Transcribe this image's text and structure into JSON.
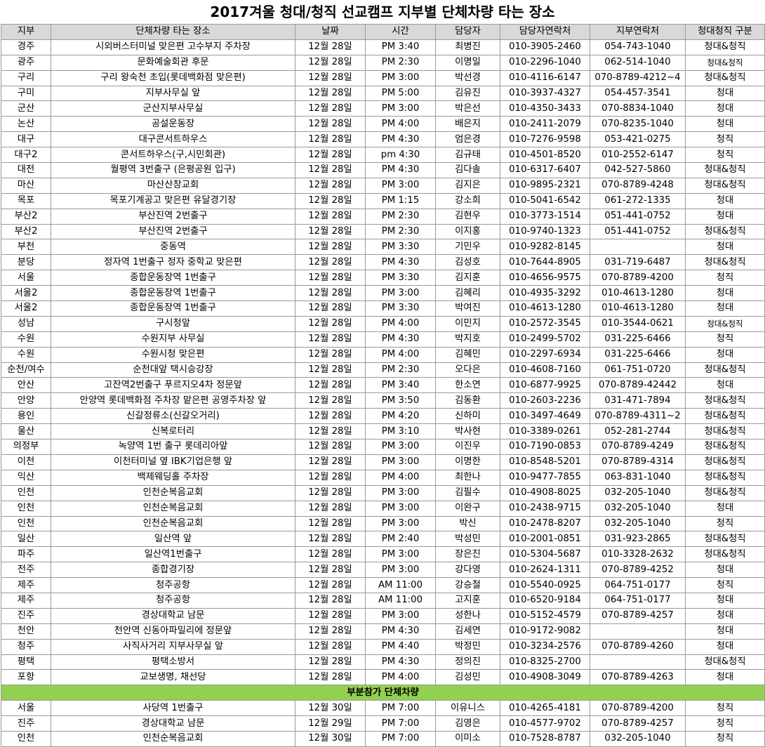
{
  "title": "2017겨울 청대/청직 선교캠프 지부별 단체차량 타는 장소",
  "headers": [
    "지부",
    "단체차량 타는 장소",
    "날짜",
    "시간",
    "담당자",
    "담당자연락처",
    "지부연락처",
    "청대청직 구분"
  ],
  "rows": [
    [
      "경주",
      "시외버스터미널 맞은편 고수부지 주차장",
      "12월 28일",
      "PM 3:40",
      "최병진",
      "010-3905-2460",
      "054-743-1040",
      "청대&청직"
    ],
    [
      "광주",
      "문화예술회관 후문",
      "12월 28일",
      "PM 2:30",
      "이명일",
      "010-2296-1040",
      "062-514-1040",
      "청대&청직"
    ],
    [
      "구리",
      "구리 왕숙천 초입(롯데백화점 맞은편)",
      "12월 28일",
      "PM 3:00",
      "박선경",
      "010-4116-6147",
      "070-8789-4212~4",
      "청대&청직"
    ],
    [
      "구미",
      "지부사무실 앞",
      "12월 28일",
      "PM 5:00",
      "김유진",
      "010-3937-4327",
      "054-457-3541",
      "청대"
    ],
    [
      "군산",
      "군산지부사무실",
      "12월 28일",
      "PM 3:00",
      "박은선",
      "010-4350-3433",
      "070-8834-1040",
      "청대"
    ],
    [
      "논산",
      "공설운동장",
      "12월 28일",
      "PM 4:00",
      "배은지",
      "010-2411-2079",
      "070-8235-1040",
      "청대"
    ],
    [
      "대구",
      "대구콘서트하우스",
      "12월 28일",
      "PM 4:30",
      "엄은경",
      "010-7276-9598",
      "053-421-0275",
      "청직"
    ],
    [
      "대구2",
      "콘서트하우스(구,시민회관)",
      "12월 28일",
      "pm 4:30",
      "김규태",
      "010-4501-8520",
      "010-2552-6147",
      "청직"
    ],
    [
      "대전",
      "월평역 3번출구 (은평공원 입구)",
      "12월 28일",
      "PM 4:30",
      "김다솔",
      "010-6317-6407",
      "042-527-5860",
      "청대&청직"
    ],
    [
      "마산",
      "마산산창교회",
      "12월 28일",
      "PM 3:00",
      "김지은",
      "010-9895-2321",
      "070-8789-4248",
      "청대&청직"
    ],
    [
      "목포",
      "목포기계공고 맞은편 유달경기장",
      "12월 28일",
      "PM 1:15",
      "강소희",
      "010-5041-6542",
      "061-272-1335",
      "청대"
    ],
    [
      "부산2",
      "부산진역 2번출구",
      "12월 28일",
      "PM 2:30",
      "김현우",
      "010-3773-1514",
      "051-441-0752",
      "청대"
    ],
    [
      "부산2",
      "부산진역 2번출구",
      "12월 28일",
      "PM 2:30",
      "이지홍",
      "010-9740-1323",
      "051-441-0752",
      "청대&청직"
    ],
    [
      "부천",
      "중동역",
      "12월 28일",
      "PM 3:30",
      "기민우",
      "010-9282-8145",
      "",
      "청대"
    ],
    [
      "분당",
      "정자역 1번출구 정자 중학교 맞은편",
      "12월 28일",
      "PM 4:30",
      "김성호",
      "010-7644-8905",
      "031-719-6487",
      "청대&청직"
    ],
    [
      "서울",
      "종합운동장역 1번출구",
      "12월 28일",
      "PM 3:30",
      "김지훈",
      "010-4656-9575",
      "070-8789-4200",
      "청직"
    ],
    [
      "서울2",
      "종합운동장역 1번출구",
      "12월 28일",
      "PM 3:00",
      "김혜리",
      "010-4935-3292",
      "010-4613-1280",
      "청대"
    ],
    [
      "서울2",
      "종합운동장역 1번출구",
      "12월 28일",
      "PM 3:30",
      "박여진",
      "010-4613-1280",
      "010-4613-1280",
      "청대"
    ],
    [
      "성남",
      "구시청앞",
      "12월 28일",
      "PM 4:00",
      "이민지",
      "010-2572-3545",
      "010-3544-0621",
      "청대&청직"
    ],
    [
      "수원",
      "수원지부 사무실",
      "12월 28일",
      "PM 4:30",
      "박지호",
      "010-2499-5702",
      "031-225-6466",
      "청직"
    ],
    [
      "수원",
      "수원시청 맞은편",
      "12월 28일",
      "PM 4:00",
      "김혜민",
      "010-2297-6934",
      "031-225-6466",
      "청대"
    ],
    [
      "순천/여수",
      "순천대앞 택시승강장",
      "12월 28일",
      "PM 2:30",
      "오다은",
      "010-4608-7160",
      "061-751-0720",
      "청대&청직"
    ],
    [
      "안산",
      "고잔역2번출구 푸르지오4차 정문앞",
      "12월 28일",
      "PM 3:40",
      "한소연",
      "010-6877-9925",
      "070-8789-42442",
      "청대"
    ],
    [
      "안양",
      "안양역 롯데백화점 주차장 맡은편 공영주차장 앞",
      "12월 28일",
      "PM 3:50",
      "김동환",
      "010-2603-2236",
      "031-471-7894",
      "청대&청직"
    ],
    [
      "용인",
      "신갈정류소(신갈오거리)",
      "12월 28일",
      "PM 4:20",
      "신하미",
      "010-3497-4649",
      "070-8789-4311~2",
      "청대&청직"
    ],
    [
      "울산",
      "신복로터리",
      "12월 28일",
      "PM 3:10",
      "박사현",
      "010-3389-0261",
      "052-281-2744",
      "청대&청직"
    ],
    [
      "의정부",
      "녹양역 1번 출구 롯데리아앞",
      "12월 28일",
      "PM 3:00",
      "이진우",
      "010-7190-0853",
      "070-8789-4249",
      "청대&청직"
    ],
    [
      "이천",
      "이천터미널 옆 IBK기업은행 앞",
      "12월 28일",
      "PM 3:00",
      "이명한",
      "010-8548-5201",
      "070-8789-4314",
      "청대&청직"
    ],
    [
      "익산",
      "백제웨딩홀 주차장",
      "12월 28일",
      "PM 4:00",
      "최한나",
      "010-9477-7855",
      "063-831-1040",
      "청대&청직"
    ],
    [
      "인천",
      "인천순복음교회",
      "12월 28일",
      "PM 3:00",
      "김필수",
      "010-4908-8025",
      "032-205-1040",
      "청대&청직"
    ],
    [
      "인천",
      "인천순복음교회",
      "12월 28일",
      "PM 3:00",
      "이완구",
      "010-2438-9715",
      "032-205-1040",
      "청대"
    ],
    [
      "인천",
      "인천순복음교회",
      "12월 28일",
      "PM 3:00",
      "박신",
      "010-2478-8207",
      "032-205-1040",
      "청직"
    ],
    [
      "일산",
      "일산역 앞",
      "12월 28일",
      "PM 2:40",
      "박성민",
      "010-2001-0851",
      "031-923-2865",
      "청대&청직"
    ],
    [
      "파주",
      "일산역1번출구",
      "12월 28일",
      "PM 3:00",
      "장은진",
      "010-5304-5687",
      "010-3328-2632",
      "청대&청직"
    ],
    [
      "전주",
      "종합경기장",
      "12월 28일",
      "PM 3:00",
      "강다영",
      "010-2624-1311",
      "070-8789-4252",
      "청대"
    ],
    [
      "제주",
      "청주공항",
      "12월 28일",
      "AM 11:00",
      "강승철",
      "010-5540-0925",
      "064-751-0177",
      "청직"
    ],
    [
      "제주",
      "청주공항",
      "12월 28일",
      "AM 11:00",
      "고지훈",
      "010-6520-9184",
      "064-751-0177",
      "청대"
    ],
    [
      "진주",
      "경상대학교 남문",
      "12월 28일",
      "PM 3:00",
      "성한나",
      "010-5152-4579",
      "070-8789-4257",
      "청대"
    ],
    [
      "천안",
      "천안역 신동아파밀리에 정문앞",
      "12월 28일",
      "PM 4:30",
      "김세연",
      "010-9172-9082",
      "",
      "청대"
    ],
    [
      "청주",
      "사직사거리 지부사무실 앞",
      "12월 28일",
      "PM 4:40",
      "박정민",
      "010-3234-2576",
      "070-8789-4260",
      "청대"
    ],
    [
      "평택",
      "평택소방서",
      "12월 28일",
      "PM 4:30",
      "정의진",
      "010-8325-2700",
      "",
      "청대&청직"
    ],
    [
      "포항",
      "교보생명, 채선당",
      "12월 28일",
      "PM 4:00",
      "김성민",
      "010-4908-3049",
      "070-8789-4263",
      "청대"
    ]
  ],
  "section_label": "부분참가 단체차량",
  "partial_rows": [
    [
      "서울",
      "사당역 1번출구",
      "12월 30일",
      "PM 7:00",
      "이유니스",
      "010-4265-4181",
      "070-8789-4200",
      "청직"
    ],
    [
      "진주",
      "경상대학교 남문",
      "12월 29일",
      "PM 7:00",
      "김영은",
      "010-4577-9702",
      "070-8789-4257",
      "청직"
    ],
    [
      "인천",
      "인천순복음교회",
      "12월 30일",
      "PM 7:00",
      "이미소",
      "010-7528-8787",
      "032-205-1040",
      "청직"
    ]
  ],
  "colors": {
    "header_bg": "#d9d9d9",
    "section_bg": "#92d050",
    "grid": "#9a9a9a"
  }
}
